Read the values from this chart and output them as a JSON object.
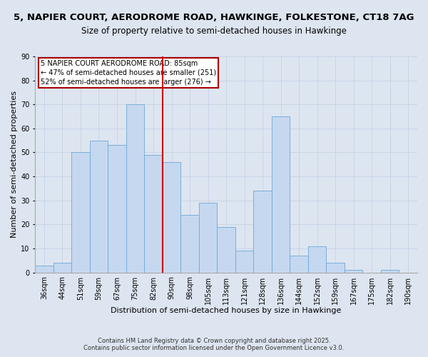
{
  "title": "5, NAPIER COURT, AERODROME ROAD, HAWKINGE, FOLKESTONE, CT18 7AG",
  "subtitle": "Size of property relative to semi-detached houses in Hawkinge",
  "xlabel": "Distribution of semi-detached houses by size in Hawkinge",
  "ylabel": "Number of semi-detached properties",
  "bin_labels": [
    "36sqm",
    "44sqm",
    "51sqm",
    "59sqm",
    "67sqm",
    "75sqm",
    "82sqm",
    "90sqm",
    "98sqm",
    "105sqm",
    "113sqm",
    "121sqm",
    "128sqm",
    "136sqm",
    "144sqm",
    "152sqm",
    "159sqm",
    "167sqm",
    "175sqm",
    "182sqm",
    "190sqm"
  ],
  "bar_heights": [
    3,
    4,
    50,
    55,
    53,
    70,
    49,
    46,
    24,
    29,
    19,
    9,
    34,
    65,
    7,
    11,
    4,
    1,
    0,
    1,
    0
  ],
  "bar_color": "#c5d8f0",
  "bar_edge_color": "#6fa8d4",
  "vline_x": 6.5,
  "vline_color": "#cc0000",
  "annotation_text": "5 NAPIER COURT AERODROME ROAD: 85sqm\n← 47% of semi-detached houses are smaller (251)\n52% of semi-detached houses are larger (276) →",
  "annotation_box_edgecolor": "#aa0000",
  "annotation_box_facecolor": "#ffffff",
  "ylim": [
    0,
    90
  ],
  "yticks": [
    0,
    10,
    20,
    30,
    40,
    50,
    60,
    70,
    80,
    90
  ],
  "grid_color": "#c8d4e8",
  "bg_color": "#dde5f0",
  "footer1": "Contains HM Land Registry data © Crown copyright and database right 2025.",
  "footer2": "Contains public sector information licensed under the Open Government Licence v3.0.",
  "title_fontsize": 9.5,
  "subtitle_fontsize": 8.5,
  "axis_label_fontsize": 8,
  "tick_fontsize": 7,
  "annotation_fontsize": 7,
  "footer_fontsize": 6
}
